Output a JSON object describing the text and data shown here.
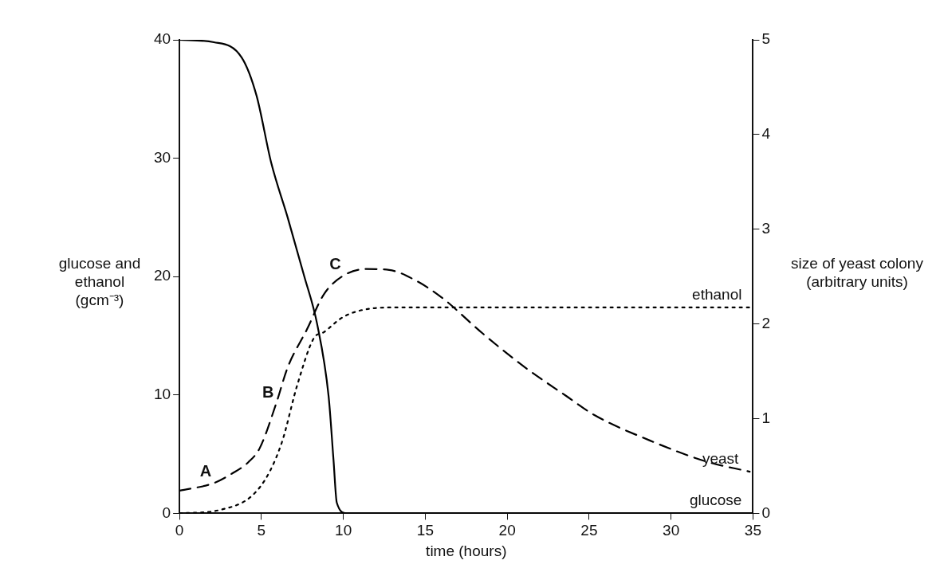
{
  "chart_data": {
    "type": "line",
    "xlabel": "time (hours)",
    "ylabel": "glucose and ethanol (gcm⁻³)",
    "y2label": "size of yeast colony (arbitrary units)",
    "xlim": [
      0,
      35
    ],
    "xticks": [
      0,
      5,
      10,
      15,
      20,
      25,
      30,
      35
    ],
    "ylim": [
      0,
      40
    ],
    "yticks": [
      0,
      10,
      20,
      30,
      40
    ],
    "y2lim": [
      0,
      5
    ],
    "y2ticks": [
      0,
      1,
      2,
      3,
      4,
      5
    ],
    "grid": false,
    "legend": false,
    "marker": "none",
    "series": [
      {
        "name": "glucose",
        "color": "#000000",
        "line_style": "solid",
        "x": [
          0,
          2.1,
          3.8,
          4.7,
          5.6,
          6.6,
          7.6,
          8.4,
          9.1,
          9.4,
          9.6,
          10.2,
          35
        ],
        "values": [
          40,
          39.8,
          38.5,
          35.3,
          29.6,
          25,
          20.1,
          16,
          9.9,
          4.5,
          0.9,
          0,
          0
        ]
      },
      {
        "name": "ethanol",
        "color": "#000000",
        "line_style": "dotted",
        "x": [
          0,
          2.5,
          4.9,
          6.2,
          7.2,
          8.2,
          8.8,
          10,
          11.7,
          13.4,
          35
        ],
        "values": [
          0,
          0.3,
          2.2,
          5.8,
          10.9,
          14.8,
          15.3,
          16.6,
          17.3,
          17.4,
          17.4
        ]
      },
      {
        "name": "yeast",
        "color": "#000000",
        "line_style": "dashed",
        "axis": "y2",
        "x": [
          0,
          2.1,
          3.2,
          4.2,
          4.9,
          5.9,
          6.6,
          7.8,
          8.8,
          10,
          11.4,
          12.8,
          14.3,
          16,
          18.5,
          21.1,
          23.6,
          25.3,
          28.7,
          32.1,
          34.8
        ],
        "values": [
          0.24,
          0.32,
          0.42,
          0.54,
          0.69,
          1.16,
          1.54,
          1.95,
          2.31,
          2.51,
          2.58,
          2.57,
          2.47,
          2.28,
          1.9,
          1.54,
          1.24,
          1.04,
          0.77,
          0.55,
          0.44
        ]
      }
    ],
    "annotations": [
      {
        "text": "A",
        "x": 2.1,
        "y": 2.6
      },
      {
        "text": "B",
        "x": 5.9,
        "y": 9.3
      },
      {
        "text": "C",
        "x": 10,
        "y": 20.1
      }
    ]
  }
}
